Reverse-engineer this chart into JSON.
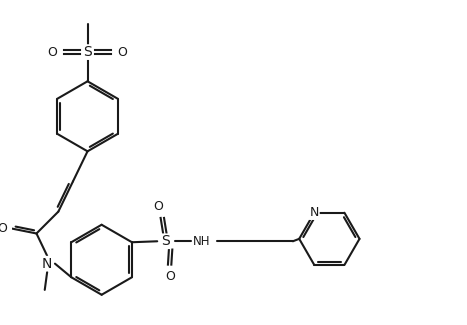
{
  "bg": "#ffffff",
  "lc": "#1a1a1a",
  "lw": 1.5,
  "dbo": 0.055,
  "fs": 9,
  "figsize": [
    4.67,
    3.25
  ],
  "dpi": 100,
  "xlim": [
    0,
    9.34
  ],
  "ylim": [
    0,
    6.5
  ]
}
